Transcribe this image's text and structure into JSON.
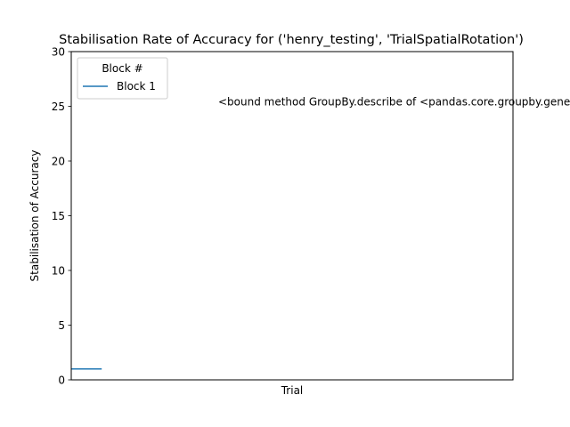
{
  "chart_data": {
    "type": "line",
    "title": "Stabilisation Rate of Accuracy for ('henry_testing', 'TrialSpatialRotation')",
    "xlabel": "Trial",
    "ylabel": "Stabilisation of Accuracy",
    "ylim": [
      0,
      30
    ],
    "yticks": [
      "0",
      "5",
      "10",
      "15",
      "20",
      "25",
      "30"
    ],
    "x_ticks_shown": false,
    "grid": false,
    "legend": {
      "title": "Block #",
      "placement": "top-left"
    },
    "series": [
      {
        "name": "Block 1",
        "color": "#1f77b4",
        "points": [
          {
            "x": 0,
            "y": 1
          },
          {
            "x": 1,
            "y": 1
          }
        ]
      }
    ],
    "annotation": {
      "text": "<bound method GroupBy.describe of <pandas.core.groupby.generic.DataFrameGroupBy object",
      "y": 25
    }
  }
}
